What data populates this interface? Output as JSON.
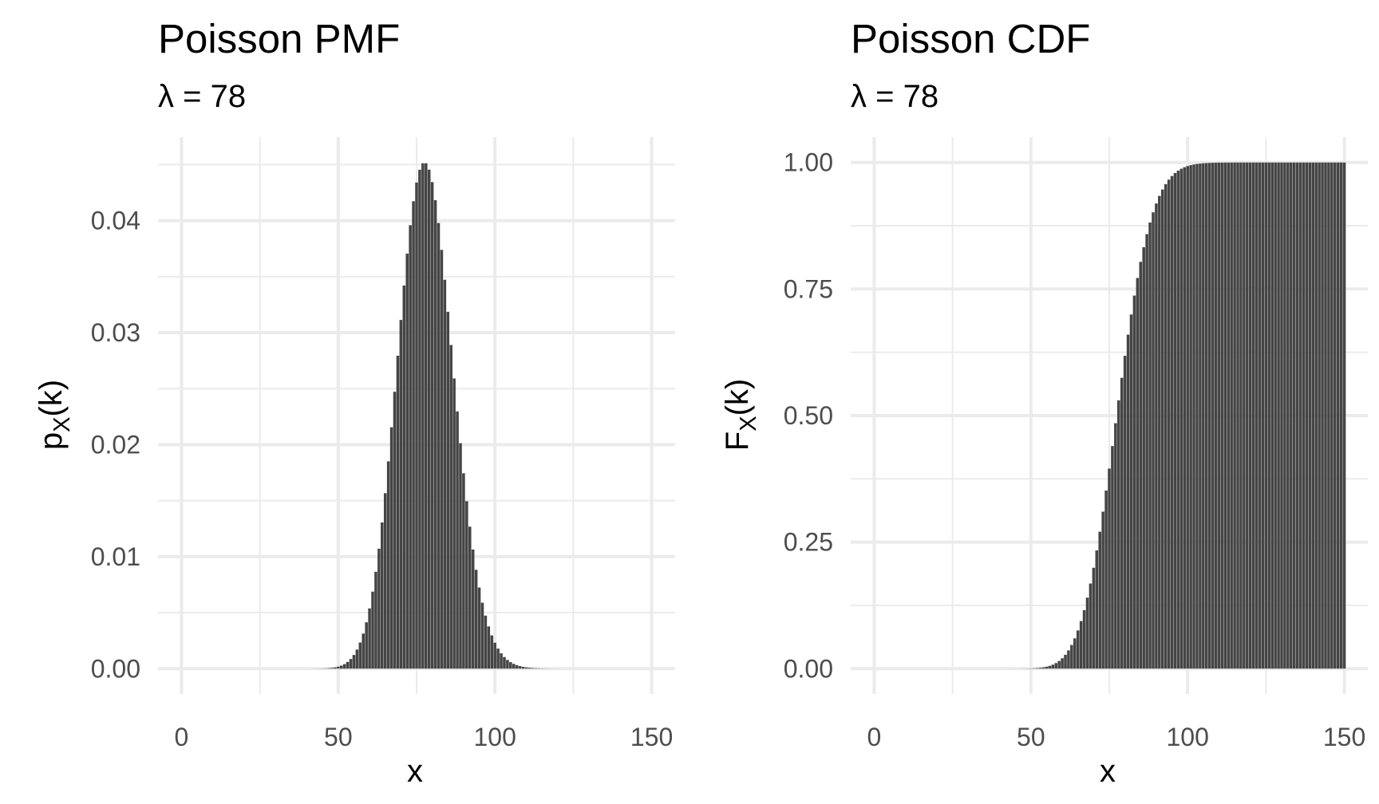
{
  "chart_data": [
    {
      "type": "bar",
      "title": "Poisson PMF",
      "subtitle": {
        "symbol": "λ",
        "rest": " = 78"
      },
      "xlabel": "x",
      "ylabel": {
        "main": "p",
        "sub": "X",
        "tail": "(k)"
      },
      "lambda": 78,
      "x_range": [
        0,
        150
      ],
      "xlim": [
        -7.5,
        157.5
      ],
      "ylim": [
        -0.00226,
        0.04745
      ],
      "x_ticks": [
        0,
        50,
        100,
        150
      ],
      "x_tick_labels": [
        "0",
        "50",
        "100",
        "150"
      ],
      "y_ticks": [
        0,
        0.01,
        0.02,
        0.03,
        0.04
      ],
      "y_tick_labels": [
        "0.00",
        "0.01",
        "0.02",
        "0.03",
        "0.04"
      ],
      "peak_value": 0.0451,
      "bar_color": "#454545",
      "grid": true,
      "legend": "none"
    },
    {
      "type": "bar",
      "title": "Poisson CDF",
      "subtitle": {
        "symbol": "λ",
        "rest": " = 78"
      },
      "xlabel": "x",
      "ylabel": {
        "main": "F",
        "sub": "X",
        "tail": "(k)"
      },
      "lambda": 78,
      "x_range": [
        0,
        150
      ],
      "xlim": [
        -7.5,
        157.5
      ],
      "ylim": [
        -0.05,
        1.05
      ],
      "x_ticks": [
        0,
        50,
        100,
        150
      ],
      "x_tick_labels": [
        "0",
        "50",
        "100",
        "150"
      ],
      "y_ticks": [
        0,
        0.25,
        0.5,
        0.75,
        1.0
      ],
      "y_tick_labels": [
        "0.00",
        "0.25",
        "0.50",
        "0.75",
        "1.00"
      ],
      "bar_color": "#454545",
      "grid": true,
      "legend": "none"
    }
  ]
}
